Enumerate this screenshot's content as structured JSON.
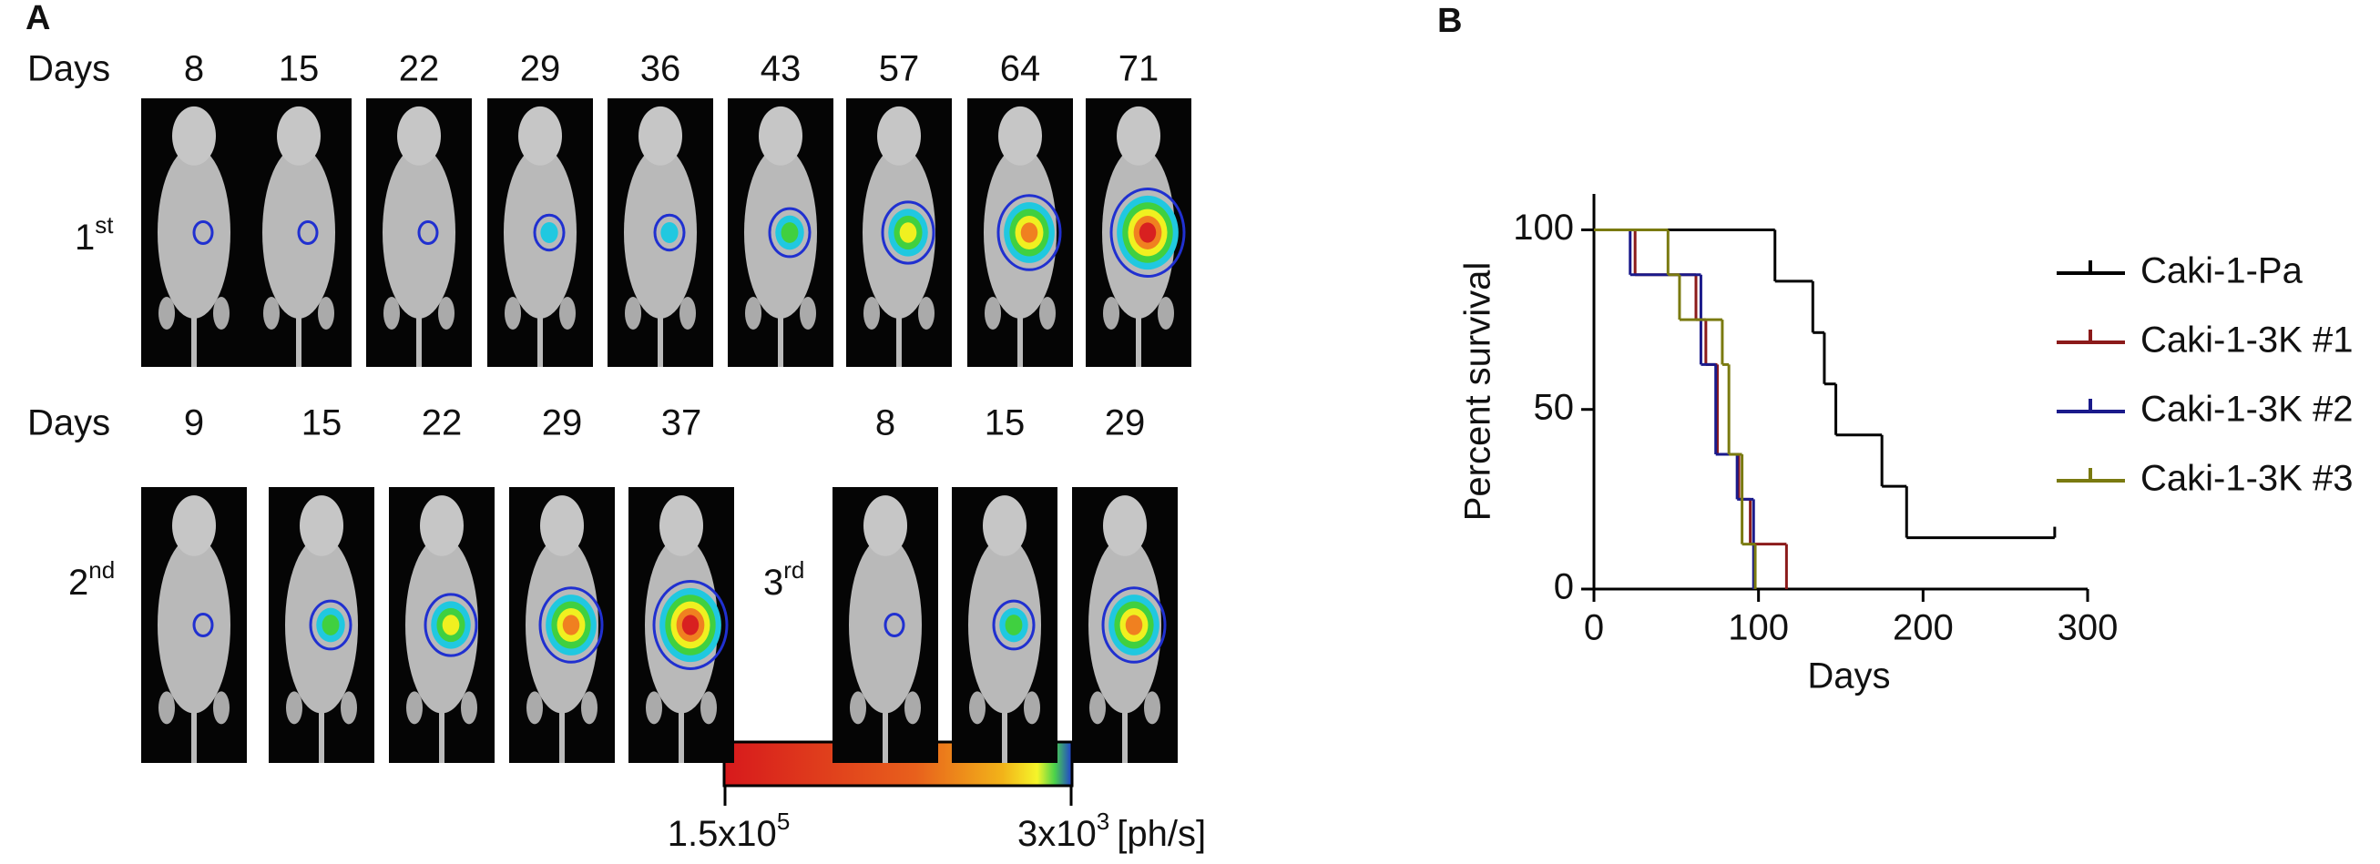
{
  "panel_a": {
    "label": "A",
    "rows": [
      {
        "days_label": "Days",
        "groups": [
          {
            "row_label": {
              "number": "1",
              "suffix": "st"
            },
            "days": [
              8,
              15,
              22,
              29,
              36,
              43,
              57,
              64,
              71
            ]
          }
        ]
      },
      {
        "days_label": "Days",
        "groups": [
          {
            "row_label": {
              "number": "2",
              "suffix": "nd"
            },
            "days": [
              9,
              15,
              22,
              29,
              37
            ]
          },
          {
            "row_label": {
              "number": "3",
              "suffix": "rd"
            },
            "days": [
              8,
              15,
              29
            ]
          }
        ]
      }
    ],
    "colorbar": {
      "min_label": {
        "base": "1.5x10",
        "exponent": "5"
      },
      "max_label": {
        "base": "3x10",
        "exponent": "3"
      },
      "unit": "[ph/s]"
    }
  },
  "chart_data": {
    "type": "step",
    "panel_label": "B",
    "x_label": "Days",
    "y_label": "Percent survival",
    "xlim": [
      0,
      300
    ],
    "xticks": [
      0,
      100,
      200,
      300
    ],
    "ylim": [
      0,
      110
    ],
    "yticks": [
      0,
      50,
      100
    ],
    "series": [
      {
        "name": "Caki-1-Pa",
        "color": "#000000",
        "x": [
          0,
          110,
          133,
          140,
          147,
          175,
          190,
          280
        ],
        "values": [
          100,
          85.7,
          71.4,
          57.1,
          42.9,
          28.6,
          14.3,
          14.3
        ]
      },
      {
        "name": "Caki-1-3K #1",
        "color": "#8b1a1a",
        "x": [
          0,
          25,
          62,
          68,
          75,
          88,
          95,
          117
        ],
        "values": [
          100,
          87.5,
          75,
          62.5,
          37.5,
          25,
          12.5,
          0
        ]
      },
      {
        "name": "Caki-1-3K #2",
        "color": "#1a1a8b",
        "x": [
          0,
          22,
          65,
          74,
          87,
          97
        ],
        "values": [
          100,
          87.5,
          62.5,
          37.5,
          25,
          0
        ]
      },
      {
        "name": "Caki-1-3K #3",
        "color": "#7a7a10",
        "x": [
          0,
          45,
          52,
          78,
          82,
          90,
          98
        ],
        "values": [
          100,
          87.5,
          75,
          62.5,
          37.5,
          12.5,
          0
        ]
      }
    ]
  }
}
